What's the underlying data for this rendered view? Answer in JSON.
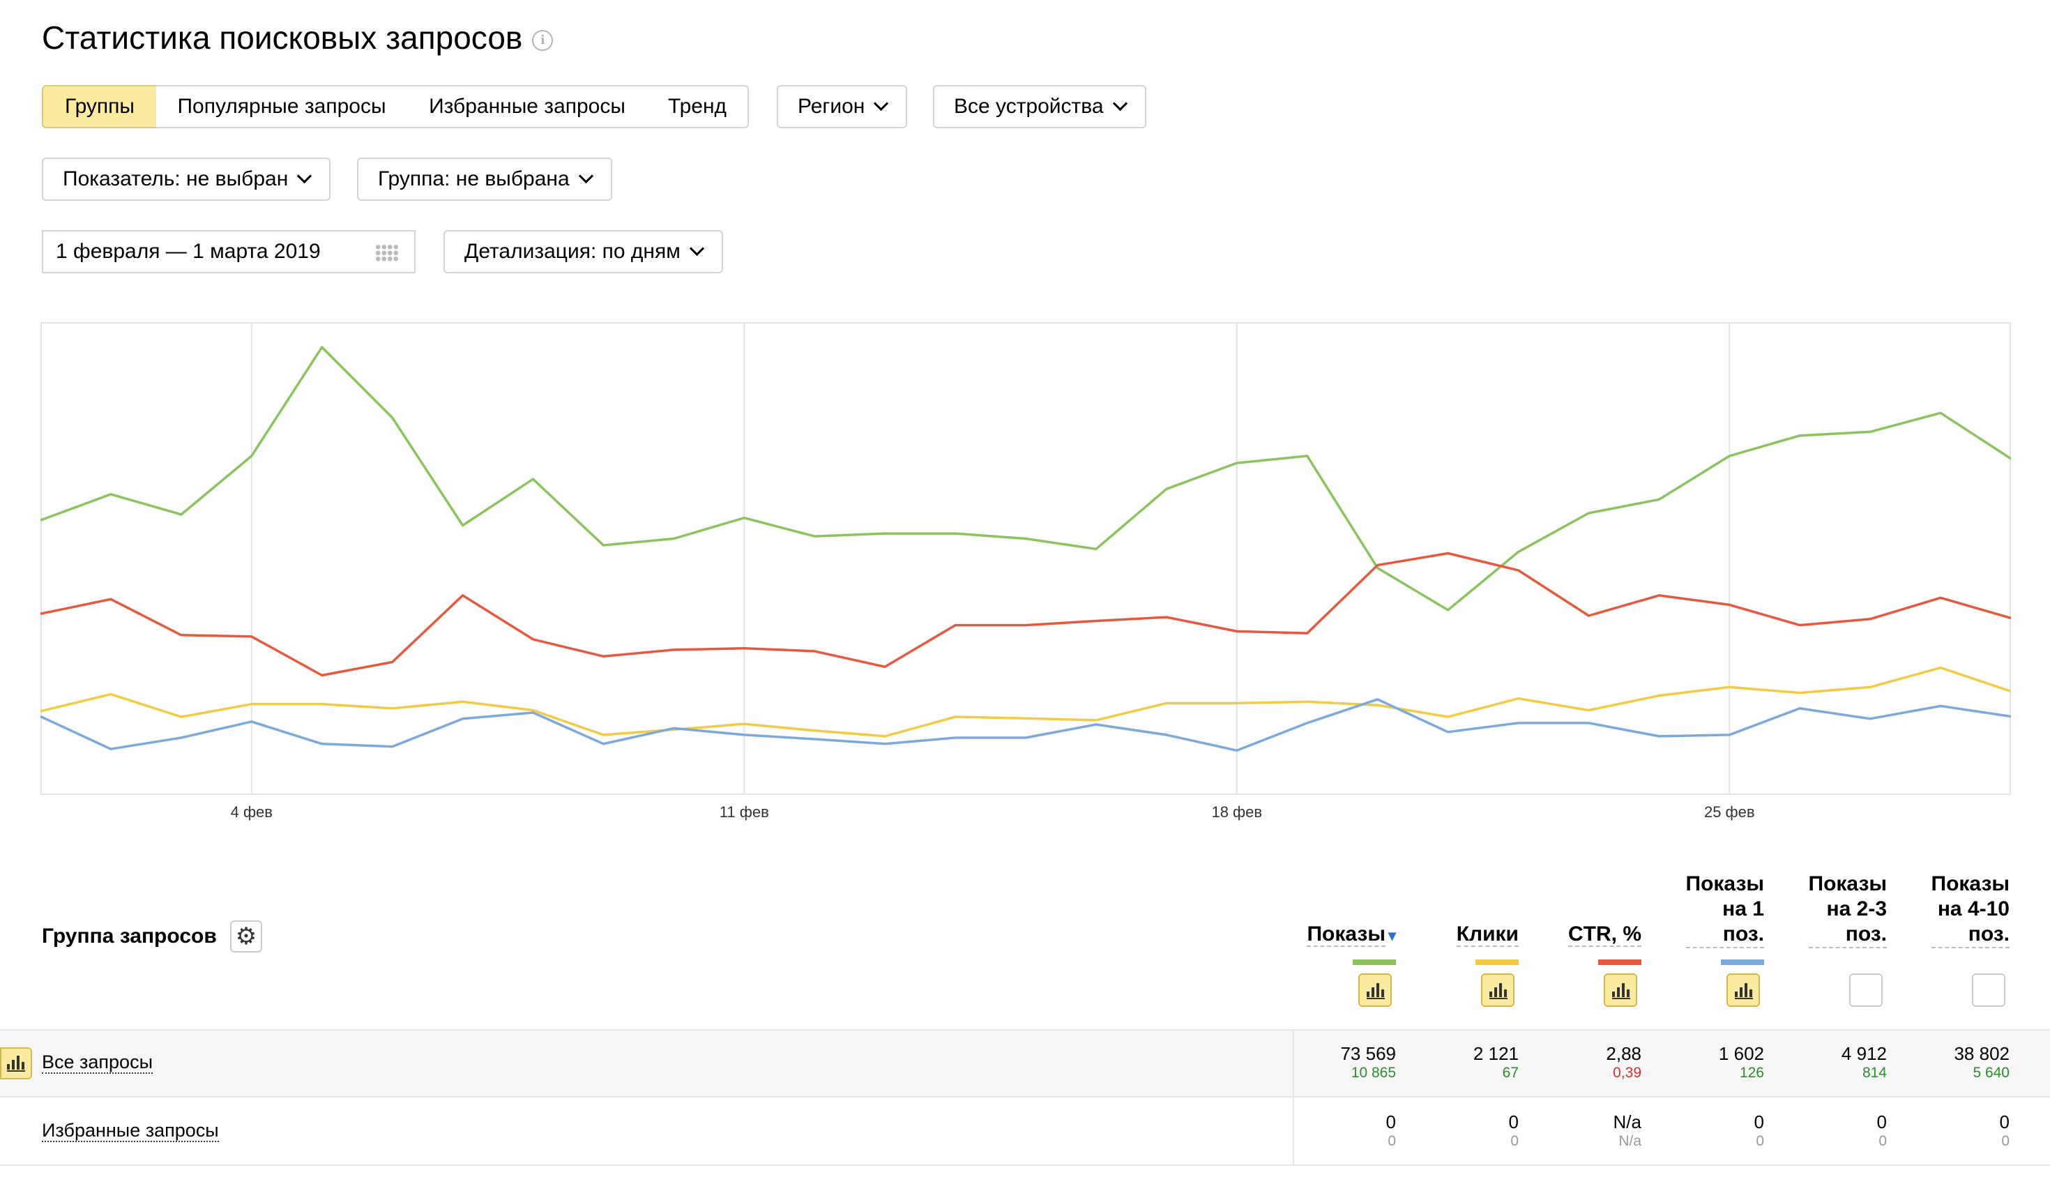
{
  "page": {
    "title": "Статистика поисковых запросов"
  },
  "tabs": [
    "Группы",
    "Популярные запросы",
    "Избранные запросы",
    "Тренд"
  ],
  "filters": {
    "region": "Регион",
    "devices": "Все устройства",
    "indicator": "Показатель: не выбран",
    "group": "Группа: не выбрана",
    "date_range": "1 февраля — 1 марта 2019",
    "detail": "Детализация: по дням"
  },
  "chart_data": {
    "type": "line",
    "x": [
      "1 фев",
      "2 фев",
      "3 фев",
      "4 фев",
      "5 фев",
      "6 фев",
      "7 фев",
      "8 фев",
      "9 фев",
      "10 фев",
      "11 фев",
      "12 фев",
      "13 фев",
      "14 фев",
      "15 фев",
      "16 фев",
      "17 фев",
      "18 фев",
      "19 фев",
      "20 фев",
      "21 фев",
      "22 фев",
      "23 фев",
      "24 фев",
      "25 фев",
      "26 фев",
      "27 фев",
      "28 фев",
      "1 мар"
    ],
    "x_ticks": [
      "4 фев",
      "11 фев",
      "18 фев",
      "25 фев"
    ],
    "series": [
      {
        "name": "Показы",
        "color": "#8dc35e",
        "values": [
          58.1,
          63.6,
          59.3,
          71.7,
          94.7,
          79.8,
          57.0,
          66.8,
          52.8,
          54.2,
          58.6,
          54.7,
          55.3,
          55.3,
          54.2,
          52.0,
          64.7,
          70.2,
          71.7,
          48.0,
          39.1,
          51.4,
          59.6,
          62.5,
          71.7,
          76.0,
          76.8,
          80.8,
          71.1
        ]
      },
      {
        "name": "Клики",
        "color": "#f3ca43",
        "values": [
          17.7,
          21.3,
          16.5,
          19.2,
          19.2,
          18.3,
          19.7,
          17.9,
          12.7,
          13.8,
          15.0,
          13.6,
          12.4,
          16.5,
          16.2,
          15.8,
          19.4,
          19.4,
          19.7,
          19.0,
          16.5,
          20.4,
          17.9,
          21.0,
          22.8,
          21.6,
          22.8,
          26.9,
          21.9
        ]
      },
      {
        "name": "CTR, %",
        "color": "#e5593f",
        "values": [
          38.3,
          41.4,
          33.8,
          33.5,
          25.3,
          28.1,
          42.2,
          32.9,
          29.3,
          30.7,
          31.0,
          30.4,
          27.1,
          35.9,
          35.9,
          36.8,
          37.6,
          34.6,
          34.2,
          48.6,
          51.1,
          47.5,
          37.9,
          42.2,
          40.2,
          35.9,
          37.2,
          41.7,
          37.4
        ]
      },
      {
        "name": "Показы на 1 поз.",
        "color": "#7ba9d9",
        "values": [
          16.6,
          9.7,
          12.1,
          15.5,
          10.8,
          10.2,
          16.1,
          17.4,
          10.8,
          14.1,
          12.7,
          11.8,
          10.8,
          12.1,
          12.1,
          14.9,
          12.7,
          9.4,
          15.2,
          20.2,
          13.3,
          15.2,
          15.2,
          12.4,
          12.7,
          18.3,
          16.1,
          18.8,
          16.6
        ]
      }
    ]
  },
  "table": {
    "group_header": "Группа запросов",
    "columns": [
      {
        "label": "Показы",
        "color": "#8dc35e",
        "enabled": true
      },
      {
        "label": "Клики",
        "color": "#f3ca43",
        "enabled": true
      },
      {
        "label": "CTR, %",
        "color": "#e5593f",
        "enabled": true
      },
      {
        "label": "Показы на 1 поз.",
        "line1": "Показы",
        "line2": "на 1",
        "line3": "поз.",
        "color": "#7ba9d9",
        "enabled": true
      },
      {
        "label": "Показы на 2-3 поз.",
        "line1": "Показы",
        "line2": "на 2-3",
        "line3": "поз.",
        "enabled": false
      },
      {
        "label": "Показы на 4-10 поз.",
        "line1": "Показы",
        "line2": "на 4-10",
        "line3": "поз.",
        "enabled": false
      }
    ],
    "rows": [
      {
        "label": "Все запросы",
        "values": [
          "73 569",
          "2 121",
          "2,88",
          "1 602",
          "4 912",
          "38 802"
        ],
        "deltas": [
          "10 865",
          "67",
          "0,39",
          "126",
          "814",
          "5 640"
        ]
      },
      {
        "label": "Избранные запросы",
        "values": [
          "0",
          "0",
          "N/a",
          "0",
          "0",
          "0"
        ],
        "deltas": [
          "0",
          "0",
          "N/a",
          "0",
          "0",
          "0"
        ]
      }
    ]
  }
}
